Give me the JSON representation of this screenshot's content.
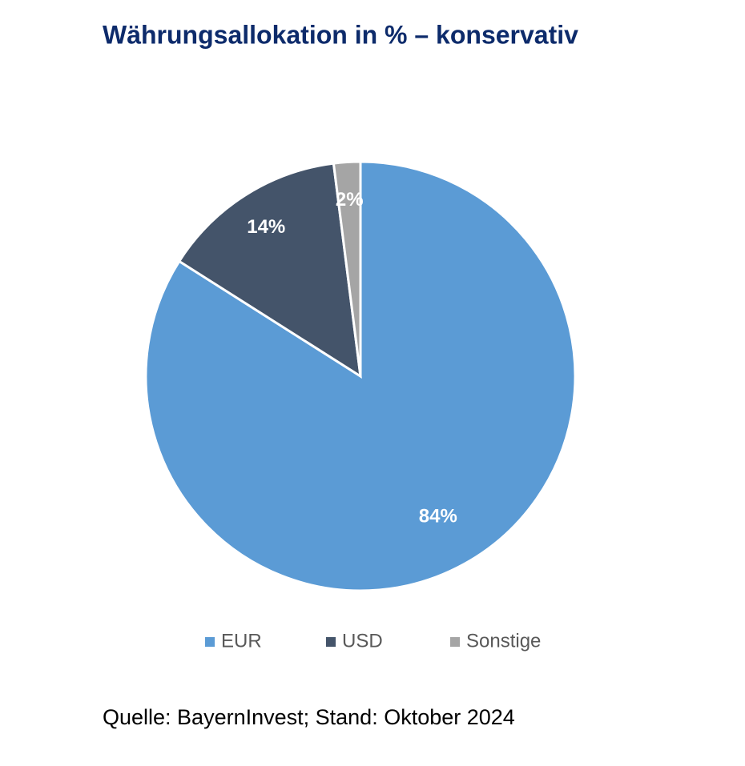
{
  "chart_data": {
    "type": "pie",
    "title": "Währungsallokation in % – konservativ",
    "categories": [
      "EUR",
      "USD",
      "Sonstige"
    ],
    "values": [
      84,
      14,
      2
    ],
    "value_labels": [
      "84%",
      "14%",
      "2%"
    ],
    "colors": [
      "#5b9bd5",
      "#44546a",
      "#a5a5a5"
    ],
    "legend": "bottom",
    "source": "Quelle: BayernInvest; Stand: Oktober 2024"
  }
}
